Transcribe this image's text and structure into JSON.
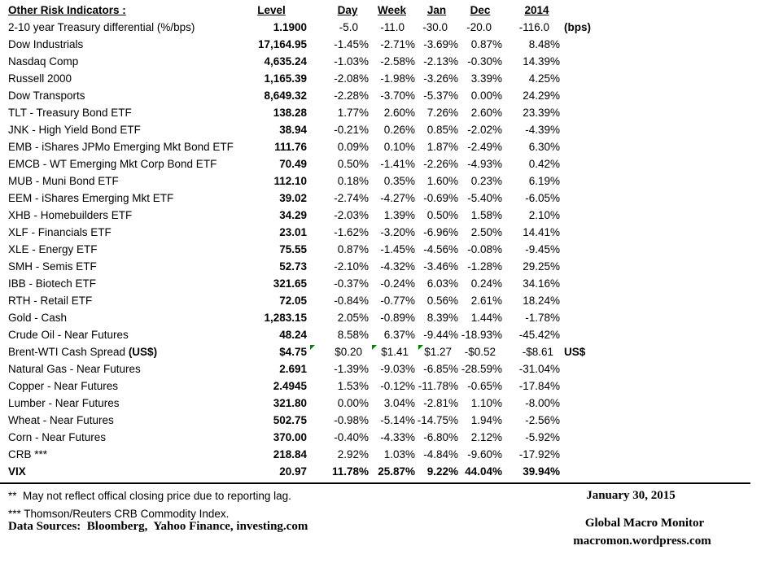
{
  "report": {
    "title": "Other Risk Indicators :",
    "columns": [
      "Level",
      "Day",
      "Week",
      "Jan",
      "Dec",
      "2014"
    ],
    "flag_color": "#008000",
    "rows": [
      {
        "label": "2-10 year Treasury differential (%/bps)",
        "values": [
          "1.1900",
          "-5.0",
          "-11.0",
          "-30.0",
          "-20.0",
          "-116.0"
        ],
        "suffix": "(bps)",
        "pad": 13
      },
      {
        "label": "Dow Industrials",
        "values": [
          "17,164.95",
          "-1.45%",
          "-2.71%",
          "-3.69%",
          "0.87%",
          "8.48%"
        ]
      },
      {
        "label": "Nasdaq Comp",
        "values": [
          "4,635.24",
          "-1.03%",
          "-2.58%",
          "-2.13%",
          "-0.30%",
          "14.39%"
        ]
      },
      {
        "label": "Russell 2000",
        "values": [
          "1,165.39",
          "-2.08%",
          "-1.98%",
          "-3.26%",
          "3.39%",
          "4.25%"
        ]
      },
      {
        "label": "Dow Transports",
        "values": [
          "8,649.32",
          "-2.28%",
          "-3.70%",
          "-5.37%",
          "0.00%",
          "24.29%"
        ]
      },
      {
        "label": "TLT - Treasury Bond ETF",
        "values": [
          "138.28",
          "1.77%",
          "2.60%",
          "7.26%",
          "2.60%",
          "23.39%"
        ]
      },
      {
        "label": "JNK - High Yield Bond ETF",
        "values": [
          "38.94",
          "-0.21%",
          "0.26%",
          "0.85%",
          "-2.02%",
          "-4.39%"
        ]
      },
      {
        "label": "EMB - iShares JPMo Emerging Mkt Bond ETF",
        "values": [
          "111.76",
          "0.09%",
          "0.10%",
          "1.87%",
          "-2.49%",
          "6.30%"
        ]
      },
      {
        "label": "EMCB - WT Emerging Mkt Corp Bond ETF",
        "values": [
          "70.49",
          "0.50%",
          "-1.41%",
          "-2.26%",
          "-4.93%",
          "0.42%"
        ]
      },
      {
        "label": "MUB - Muni Bond ETF",
        "values": [
          "112.10",
          "0.18%",
          "0.35%",
          "1.60%",
          "0.23%",
          "6.19%"
        ]
      },
      {
        "label": "EEM - iShares Emerging Mkt ETF",
        "values": [
          "39.02",
          "-2.74%",
          "-4.27%",
          "-0.69%",
          "-5.40%",
          "-6.05%"
        ]
      },
      {
        "label": "XHB - Homebuilders ETF",
        "values": [
          "34.29",
          "-2.03%",
          "1.39%",
          "0.50%",
          "1.58%",
          "2.10%"
        ]
      },
      {
        "label": "XLF - Financials ETF",
        "values": [
          "23.01",
          "-1.62%",
          "-3.20%",
          "-6.96%",
          "2.50%",
          "14.41%"
        ]
      },
      {
        "label": "XLE - Energy ETF",
        "values": [
          "75.55",
          "0.87%",
          "-1.45%",
          "-4.56%",
          "-0.08%",
          "-9.45%"
        ]
      },
      {
        "label": "SMH - Semis ETF",
        "values": [
          "52.73",
          "-2.10%",
          "-4.32%",
          "-3.46%",
          "-1.28%",
          "29.25%"
        ]
      },
      {
        "label": "IBB - Biotech ETF",
        "values": [
          "321.65",
          "-0.37%",
          "-0.24%",
          "6.03%",
          "0.24%",
          "34.16%"
        ]
      },
      {
        "label": "RTH - Retail ETF",
        "values": [
          "72.05",
          "-0.84%",
          "-0.77%",
          "0.56%",
          "2.61%",
          "18.24%"
        ]
      },
      {
        "label": "Gold - Cash",
        "values": [
          "1,283.15",
          "2.05%",
          "-0.89%",
          "8.39%",
          "1.44%",
          "-1.78%"
        ]
      },
      {
        "label": "Crude Oil - Near Futures",
        "values": [
          "48.24",
          "8.58%",
          "6.37%",
          "-9.44%",
          "-18.93%",
          "-45.42%"
        ]
      },
      {
        "label": "Brent-WTI Cash Spread ",
        "label_bold": "(US$)",
        "values": [
          "$4.75",
          "$0.20",
          "$1.41",
          "$1.27",
          "-$0.52",
          "-$8.61"
        ],
        "suffix": "US$",
        "flags": [
          1,
          2,
          3
        ],
        "pad": 8
      },
      {
        "label": "Natural Gas - Near Futures",
        "values": [
          "2.691",
          "-1.39%",
          "-9.03%",
          "-6.85%",
          "-28.59%",
          "-31.04%"
        ]
      },
      {
        "label": "Copper - Near Futures",
        "values": [
          "2.4945",
          "1.53%",
          "-0.12%",
          "-11.78%",
          "-0.65%",
          "-17.84%"
        ]
      },
      {
        "label": "Lumber - Near Futures",
        "values": [
          "321.80",
          "0.00%",
          "3.04%",
          "-2.81%",
          "1.10%",
          "-8.00%"
        ]
      },
      {
        "label": "Wheat - Near Futures",
        "values": [
          "502.75",
          "-0.98%",
          "-5.14%",
          "-14.75%",
          "1.94%",
          "-2.56%"
        ]
      },
      {
        "label": "Corn - Near Futures",
        "values": [
          "370.00",
          "-0.40%",
          "-4.33%",
          "-6.80%",
          "2.12%",
          "-5.92%"
        ]
      },
      {
        "label": "CRB ***",
        "values": [
          "218.84",
          "2.92%",
          "1.03%",
          "-4.84%",
          "-9.60%",
          "-17.92%"
        ]
      },
      {
        "label": "VIX",
        "values": [
          "20.97",
          "11.78%",
          "25.87%",
          "9.22%",
          "44.04%",
          "39.94%"
        ],
        "bold": true
      }
    ],
    "footer": {
      "footnote_lag": "**  May not reflect offical closing price due to reporting lag.",
      "footnote_crb": "*** Thomson/Reuters CRB Commodity Index.",
      "data_sources": "Data Sources:  Bloomberg,  Yahoo Finance, investing.com",
      "date": "January 30, 2015",
      "brand": "Global Macro Monitor",
      "brand_url": "macromon.wordpress.com"
    }
  }
}
